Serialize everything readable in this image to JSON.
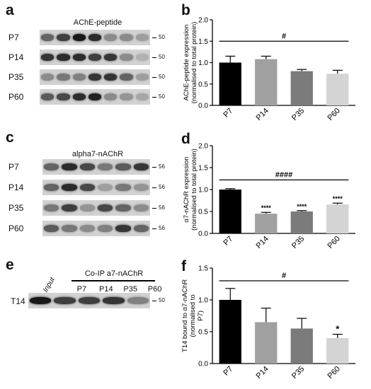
{
  "panels": {
    "a": {
      "letter": "a",
      "title": "AChE-peptide",
      "rows": [
        {
          "label": "P7",
          "mw": "50",
          "bands": [
            0.55,
            0.75,
            0.95,
            0.85,
            0.35,
            0.35,
            0.25
          ]
        },
        {
          "label": "P14",
          "mw": "50",
          "bands": [
            0.8,
            0.85,
            0.85,
            0.75,
            0.8,
            0.35,
            0.15
          ]
        },
        {
          "label": "P35",
          "mw": "50",
          "bands": [
            0.35,
            0.45,
            0.4,
            0.8,
            0.8,
            0.55,
            0.25
          ]
        },
        {
          "label": "P60",
          "mw": "50",
          "bands": [
            0.6,
            0.7,
            0.85,
            0.9,
            0.35,
            0.3,
            0.2
          ]
        }
      ]
    },
    "b": {
      "letter": "b"
    },
    "c": {
      "letter": "c",
      "title": "alpha7-nAChR",
      "rows": [
        {
          "label": "P7",
          "mw": "56",
          "bands": [
            0.55,
            0.85,
            0.7,
            0.45,
            0.6,
            0.8
          ]
        },
        {
          "label": "P14",
          "mw": "56",
          "bands": [
            0.55,
            0.85,
            0.7,
            0.25,
            0.45,
            0.3
          ]
        },
        {
          "label": "P35",
          "mw": "56",
          "bands": [
            0.45,
            0.75,
            0.3,
            0.7,
            0.55,
            0.35
          ]
        },
        {
          "label": "P60",
          "mw": "56",
          "bands": [
            0.6,
            0.45,
            0.35,
            0.4,
            0.8,
            0.55
          ]
        }
      ]
    },
    "d": {
      "letter": "d"
    },
    "e": {
      "letter": "e",
      "input_label": "Input",
      "coip_title": "Co-IP a7-nAChR",
      "lanes": [
        "P7",
        "P14",
        "P35",
        "P60"
      ],
      "row_label": "T14",
      "mw": "50",
      "bands": [
        0.95,
        0.75,
        0.75,
        0.8,
        0.4
      ]
    },
    "f": {
      "letter": "f"
    }
  },
  "chart_data": [
    {
      "panel": "b",
      "type": "bar",
      "categories": [
        "P7",
        "P14",
        "P35",
        "P60"
      ],
      "values": [
        1.0,
        1.08,
        0.8,
        0.74
      ],
      "errors": [
        0.15,
        0.07,
        0.04,
        0.08
      ],
      "colors": [
        "#000000",
        "#a0a0a0",
        "#7b7b7b",
        "#d4d4d4"
      ],
      "ylabel_lines": [
        "AChE-peptide expression",
        "(normalised to total protein)"
      ],
      "ylim": [
        0,
        2.0
      ],
      "yticks": [
        0.0,
        0.5,
        1.0,
        1.5,
        2.0
      ],
      "significance": {
        "label": "#",
        "from": "P7",
        "to": "P60",
        "y": 1.5
      },
      "bar_marks": [
        "",
        "",
        "",
        ""
      ]
    },
    {
      "panel": "d",
      "type": "bar",
      "categories": [
        "P7",
        "P14",
        "P35",
        "P60"
      ],
      "values": [
        1.0,
        0.45,
        0.5,
        0.66
      ],
      "errors": [
        0.02,
        0.03,
        0.02,
        0.03
      ],
      "colors": [
        "#000000",
        "#a0a0a0",
        "#7b7b7b",
        "#d4d4d4"
      ],
      "ylabel_lines": [
        "α7-nAChR expression",
        "(normalised to total protein)"
      ],
      "ylim": [
        0,
        2.0
      ],
      "yticks": [
        0.0,
        0.5,
        1.0,
        1.5,
        2.0
      ],
      "significance": {
        "label": "####",
        "from": "P7",
        "to": "P60",
        "y": 1.22
      },
      "bar_marks": [
        "",
        "****",
        "****",
        "****"
      ]
    },
    {
      "panel": "f",
      "type": "bar",
      "categories": [
        "P7",
        "P14",
        "P35",
        "P60"
      ],
      "values": [
        1.0,
        0.65,
        0.55,
        0.4
      ],
      "errors": [
        0.18,
        0.22,
        0.16,
        0.06
      ],
      "colors": [
        "#000000",
        "#a0a0a0",
        "#7b7b7b",
        "#d4d4d4"
      ],
      "ylabel_lines": [
        "T14 bound to α7-nAChR",
        "(normalised to",
        "P7)"
      ],
      "ylim": [
        0,
        1.5
      ],
      "yticks": [
        0.0,
        0.5,
        1.0,
        1.5
      ],
      "significance": {
        "label": "#",
        "from": "P7",
        "to": "P60",
        "y": 1.3
      },
      "bar_marks": [
        "",
        "",
        "",
        "*"
      ]
    }
  ]
}
